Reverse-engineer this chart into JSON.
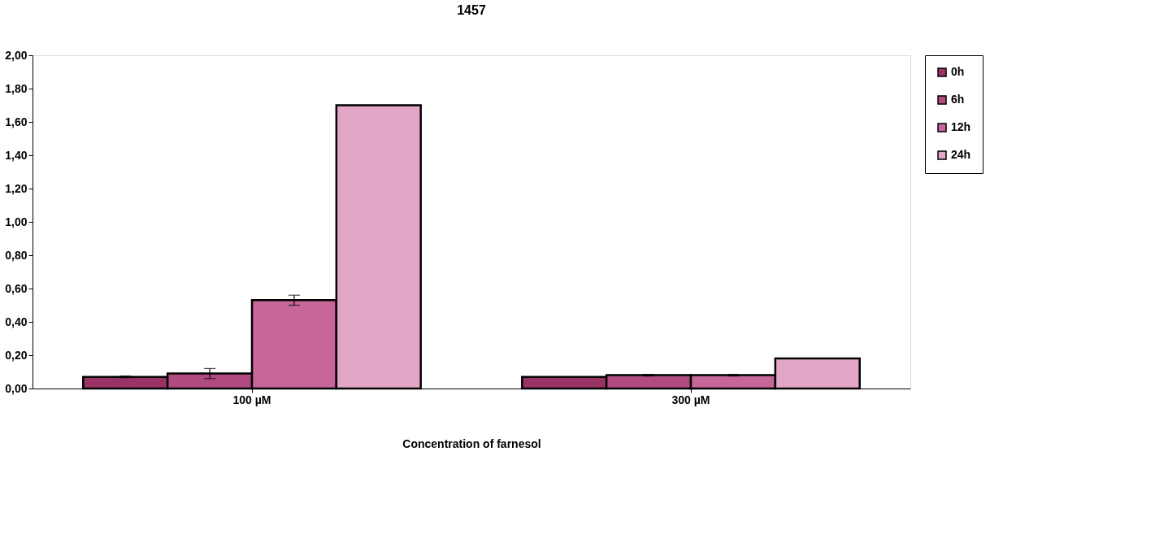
{
  "chart_data": {
    "type": "bar",
    "title": "1457",
    "xlabel": "Concentration of farnesol",
    "categories": [
      "100 µM",
      "300 µM"
    ],
    "series": [
      {
        "name": "0h",
        "color": "#993366",
        "values": [
          0.07,
          0.07
        ],
        "errors": [
          0.005,
          null
        ]
      },
      {
        "name": "6h",
        "color": "#b04a80",
        "values": [
          0.09,
          0.08
        ],
        "errors": [
          0.03,
          0.005
        ]
      },
      {
        "name": "12h",
        "color": "#c66699",
        "values": [
          0.53,
          0.08
        ],
        "errors": [
          0.03,
          0.005
        ]
      },
      {
        "name": "24h",
        "color": "#e3a6c6",
        "values": [
          1.7,
          0.18
        ],
        "errors": [
          null,
          null
        ]
      }
    ],
    "ylim": [
      0,
      2
    ],
    "yticks": [
      {
        "value": 0,
        "label": "0,00"
      },
      {
        "value": 0.2,
        "label": "0,20"
      },
      {
        "value": 0.4,
        "label": "0,40"
      },
      {
        "value": 0.6,
        "label": "0,60"
      },
      {
        "value": 0.8,
        "label": "0,80"
      },
      {
        "value": 1.0,
        "label": "1,00"
      },
      {
        "value": 1.2,
        "label": "1,20"
      },
      {
        "value": 1.4,
        "label": "1,40"
      },
      {
        "value": 1.6,
        "label": "1,60"
      },
      {
        "value": 1.8,
        "label": "1,80"
      },
      {
        "value": 2.0,
        "label": "2,00"
      }
    ],
    "grid": false,
    "legend": "right"
  }
}
